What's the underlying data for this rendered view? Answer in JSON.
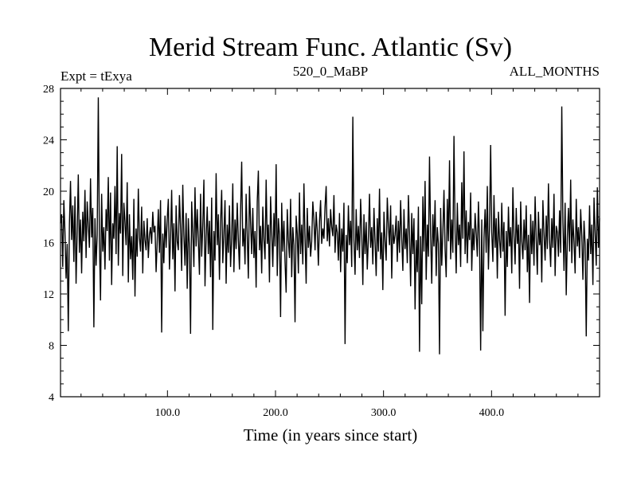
{
  "chart_data": {
    "type": "line",
    "title": "Merid Stream Func. Atlantic (Sv)",
    "subtitle_left": "Expt = tExya",
    "subtitle_center": "520_0_MaBP",
    "subtitle_right": "ALL_MONTHS",
    "xlabel": "Time (in years since start)",
    "ylabel": "",
    "xlim": [
      1,
      500
    ],
    "ylim": [
      4,
      28
    ],
    "xticks": [
      100,
      200,
      300,
      400
    ],
    "xtick_labels": [
      "100.0",
      "200.0",
      "300.0",
      "400.0"
    ],
    "yticks": [
      4,
      8,
      12,
      16,
      20,
      24,
      28
    ],
    "ytick_labels": [
      "4",
      "8",
      "12",
      "16",
      "20",
      "24",
      "28"
    ],
    "grid": false,
    "line_color": "#000000",
    "series": [
      {
        "mean": 16.0,
        "values_approx_note_free": true,
        "x_start": 1,
        "x_end": 500,
        "values": [
          17.5,
          18.2,
          14.1,
          19.3,
          16.8,
          13.2,
          15.9,
          9.1,
          17.4,
          20.8,
          16.2,
          18.9,
          14.5,
          19.6,
          12.8,
          16.9,
          21.3,
          15.2,
          17.8,
          13.6,
          18.4,
          16.1,
          20.1,
          14.8,
          19.2,
          17.3,
          15.6,
          21.0,
          16.4,
          18.7,
          9.4,
          17.9,
          14.2,
          16.6,
          27.3,
          16.1,
          11.5,
          19.8,
          15.3,
          17.2,
          13.9,
          18.6,
          16.9,
          21.1,
          14.6,
          19.9,
          12.7,
          17.5,
          16.3,
          20.4,
          15.1,
          23.5,
          14.2,
          18.3,
          16.7,
          22.9,
          13.4,
          19.1,
          17.6,
          15.8,
          20.7,
          12.9,
          18.2,
          14.7,
          16.5,
          13.1,
          19.4,
          11.8,
          17.1,
          14.9,
          20.2,
          16.4,
          15.3,
          18.8,
          13.6,
          17.7,
          16.2,
          15.4,
          17.9,
          14.8,
          16.6,
          17.2,
          15.9,
          18.4,
          16.8,
          17.3,
          13.7,
          16.1,
          18.6,
          15.2,
          19.3,
          9.0,
          16.7,
          14.4,
          18.1,
          15.6,
          17.8,
          19.4,
          13.9,
          16.3,
          20.1,
          14.7,
          17.5,
          12.2,
          18.9,
          16.1,
          15.4,
          19.7,
          17.2,
          13.8,
          20.5,
          16.6,
          14.2,
          18.3,
          12.4,
          17.9,
          15.6,
          8.9,
          19.2,
          16.8,
          14.1,
          20.3,
          15.7,
          18.6,
          16.2,
          13.5,
          19.8,
          14.9,
          17.3,
          20.9,
          12.6,
          16.4,
          18.8,
          15.1,
          17.7,
          13.3,
          19.5,
          9.2,
          16.9,
          14.6,
          21.4,
          15.8,
          18.2,
          13.1,
          17.6,
          20.1,
          14.4,
          16.7,
          19.3,
          12.8,
          17.4,
          15.2,
          18.9,
          14.1,
          16.3,
          20.6,
          13.7,
          17.8,
          15.5,
          19.1,
          16.2,
          13.9,
          18.4,
          22.3,
          15.7,
          17.1,
          14.3,
          19.8,
          16.5,
          13.2,
          20.4,
          17.6,
          15.1,
          18.7,
          14.8,
          16.9,
          12.5,
          19.2,
          21.6,
          15.4,
          17.3,
          13.6,
          18.8,
          16.2,
          14.7,
          20.9,
          15.9,
          17.4,
          12.9,
          19.6,
          16.8,
          14.1,
          18.3,
          15.7,
          22.1,
          13.4,
          17.9,
          16.6,
          10.2,
          19.1,
          15.3,
          17.7,
          14.5,
          12.1,
          18.6,
          16.2,
          14.8,
          19.4,
          13.3,
          17.2,
          15.8,
          9.8,
          18.1,
          16.7,
          13.6,
          19.9,
          15.1,
          17.4,
          14.3,
          20.6,
          16.4,
          12.8,
          18.7,
          15.6,
          17.3,
          14.9,
          16.1,
          19.2,
          17.8,
          15.4,
          18.4,
          16.9,
          14.2,
          17.6,
          19.3,
          15.9,
          17.1,
          16.3,
          18.8,
          20.4,
          16.1,
          17.9,
          15.7,
          18.6,
          17.2,
          16.5,
          19.7,
          15.2,
          17.4,
          16.8,
          14.6,
          18.3,
          13.7,
          17.1,
          15.3,
          19.1,
          8.1,
          16.6,
          14.4,
          18.9,
          15.8,
          17.7,
          14.1,
          25.8,
          16.2,
          13.5,
          18.6,
          15.4,
          17.3,
          14.8,
          19.4,
          16.9,
          12.7,
          18.2,
          15.1,
          17.6,
          13.9,
          16.4,
          19.8,
          15.6,
          17.2,
          14.3,
          18.7,
          16.1,
          13.4,
          17.9,
          15.3,
          20.2,
          14.7,
          16.8,
          12.3,
          18.4,
          16.1,
          14.6,
          19.5,
          17.3,
          15.8,
          18.9,
          13.2,
          17.4,
          15.9,
          16.6,
          18.1,
          14.5,
          17.7,
          15.2,
          19.3,
          16.4,
          13.8,
          18.6,
          15.5,
          17.1,
          14.4,
          19.7,
          16.7,
          12.6,
          18.3,
          15.1,
          17.9,
          10.8,
          16.2,
          13.7,
          18.8,
          7.5,
          16.5,
          11.2,
          19.6,
          15.3,
          20.8,
          13.1,
          17.4,
          14.9,
          22.7,
          16.6,
          12.8,
          18.2,
          15.7,
          19.3,
          13.4,
          17.2,
          15.9,
          7.3,
          18.7,
          14.2,
          16.8,
          20.1,
          15.5,
          13.3,
          19.4,
          16.1,
          22.4,
          14.7,
          17.8,
          15.2,
          24.3,
          16.9,
          13.6,
          19.1,
          15.8,
          17.4,
          14.1,
          20.7,
          16.3,
          23.1,
          15.1,
          18.5,
          14.4,
          17.6,
          16.2,
          19.9,
          13.8,
          17.1,
          15.4,
          18.3,
          16.7,
          14.9,
          19.2,
          16.1,
          7.6,
          17.8,
          9.1,
          16.4,
          18.6,
          15.2,
          20.4,
          13.9,
          17.3,
          23.6,
          16.8,
          14.5,
          19.7,
          15.6,
          17.9,
          13.2,
          18.4,
          16.2,
          14.8,
          19.1,
          15.3,
          17.6,
          10.3,
          16.9,
          14.1,
          18.8,
          15.7,
          17.2,
          13.6,
          20.3,
          16.5,
          14.3,
          18.7,
          15.9,
          17.4,
          12.4,
          19.2,
          16.1,
          14.7,
          17.8,
          15.4,
          18.9,
          13.7,
          16.6,
          11.3,
          18.2,
          15.1,
          17.7,
          14.2,
          19.6,
          16.3,
          13.5,
          18.4,
          15.8,
          17.1,
          12.9,
          19.3,
          16.7,
          14.6,
          18.1,
          15.5,
          20.6,
          16.2,
          14.1,
          17.9,
          15.6,
          19.8,
          13.4,
          17.3,
          16.8,
          14.9,
          18.5,
          15.2,
          26.6,
          17.6,
          13.8,
          19.1,
          11.9,
          16.4,
          18.7,
          15.3,
          20.9,
          14.4,
          17.8,
          16.1,
          13.6,
          19.4,
          15.7,
          17.2,
          14.8,
          18.6,
          16.5,
          13.1,
          17.7,
          15.9,
          8.7,
          16.3,
          14.6,
          18.9,
          15.1,
          17.4,
          12.7,
          19.5,
          16.8,
          14.2,
          20.3,
          15.6,
          17.9
        ]
      }
    ]
  }
}
